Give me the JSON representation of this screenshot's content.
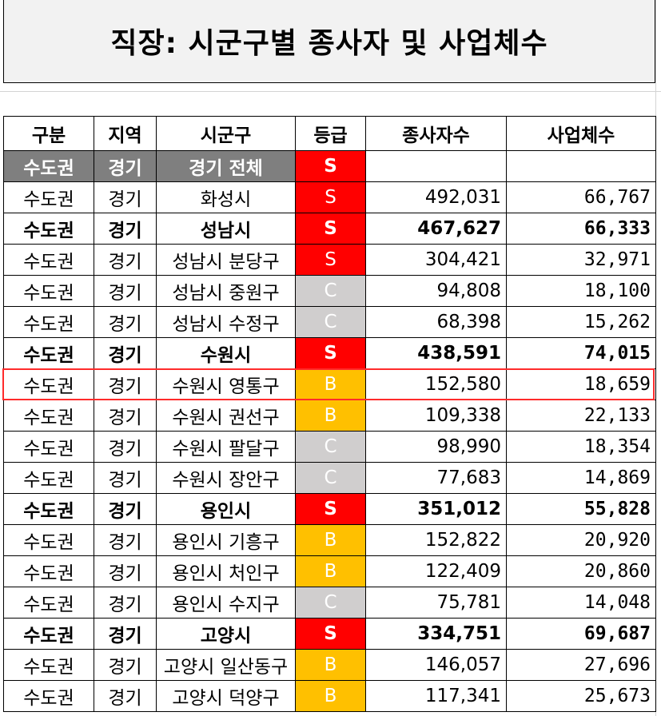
{
  "title": "직장: 시군구별 종사자 및 사업체수",
  "headers": [
    "구분",
    "지역",
    "시군구",
    "등급",
    "종사자수",
    "사업체수"
  ],
  "colors": {
    "grade_S": "#ff0000",
    "grade_B": "#ffc000",
    "grade_C": "#d0cece",
    "total_row_bg": "#7f7f7f",
    "selection_border": "#ff2b2b"
  },
  "rows": [
    {
      "region": "수도권",
      "area": "경기",
      "city": "경기 전체",
      "grade": "S",
      "workers": "",
      "businesses": "",
      "style": "total"
    },
    {
      "region": "수도권",
      "area": "경기",
      "city": "화성시",
      "grade": "S",
      "workers": "492,031",
      "businesses": "66,767",
      "style": "normal"
    },
    {
      "region": "수도권",
      "area": "경기",
      "city": "성남시",
      "grade": "S",
      "workers": "467,627",
      "businesses": "66,333",
      "style": "bold"
    },
    {
      "region": "수도권",
      "area": "경기",
      "city": "성남시 분당구",
      "grade": "S",
      "workers": "304,421",
      "businesses": "32,971",
      "style": "normal"
    },
    {
      "region": "수도권",
      "area": "경기",
      "city": "성남시 중원구",
      "grade": "C",
      "workers": "94,808",
      "businesses": "18,100",
      "style": "normal"
    },
    {
      "region": "수도권",
      "area": "경기",
      "city": "성남시 수정구",
      "grade": "C",
      "workers": "68,398",
      "businesses": "15,262",
      "style": "normal"
    },
    {
      "region": "수도권",
      "area": "경기",
      "city": "수원시",
      "grade": "S",
      "workers": "438,591",
      "businesses": "74,015",
      "style": "bold"
    },
    {
      "region": "수도권",
      "area": "경기",
      "city": "수원시 영통구",
      "grade": "B",
      "workers": "152,580",
      "businesses": "18,659",
      "style": "normal"
    },
    {
      "region": "수도권",
      "area": "경기",
      "city": "수원시 권선구",
      "grade": "B",
      "workers": "109,338",
      "businesses": "22,133",
      "style": "normal"
    },
    {
      "region": "수도권",
      "area": "경기",
      "city": "수원시 팔달구",
      "grade": "C",
      "workers": "98,990",
      "businesses": "18,354",
      "style": "normal"
    },
    {
      "region": "수도권",
      "area": "경기",
      "city": "수원시 장안구",
      "grade": "C",
      "workers": "77,683",
      "businesses": "14,869",
      "style": "normal"
    },
    {
      "region": "수도권",
      "area": "경기",
      "city": "용인시",
      "grade": "S",
      "workers": "351,012",
      "businesses": "55,828",
      "style": "bold"
    },
    {
      "region": "수도권",
      "area": "경기",
      "city": "용인시 기흥구",
      "grade": "B",
      "workers": "152,822",
      "businesses": "20,920",
      "style": "normal"
    },
    {
      "region": "수도권",
      "area": "경기",
      "city": "용인시 처인구",
      "grade": "B",
      "workers": "122,409",
      "businesses": "20,860",
      "style": "normal"
    },
    {
      "region": "수도권",
      "area": "경기",
      "city": "용인시 수지구",
      "grade": "C",
      "workers": "75,781",
      "businesses": "14,048",
      "style": "normal"
    },
    {
      "region": "수도권",
      "area": "경기",
      "city": "고양시",
      "grade": "S",
      "workers": "334,751",
      "businesses": "69,687",
      "style": "bold"
    },
    {
      "region": "수도권",
      "area": "경기",
      "city": "고양시 일산동구",
      "grade": "B",
      "workers": "146,057",
      "businesses": "27,696",
      "style": "normal"
    },
    {
      "region": "수도권",
      "area": "경기",
      "city": "고양시 덕양구",
      "grade": "B",
      "workers": "117,341",
      "businesses": "25,673",
      "style": "normal"
    }
  ]
}
